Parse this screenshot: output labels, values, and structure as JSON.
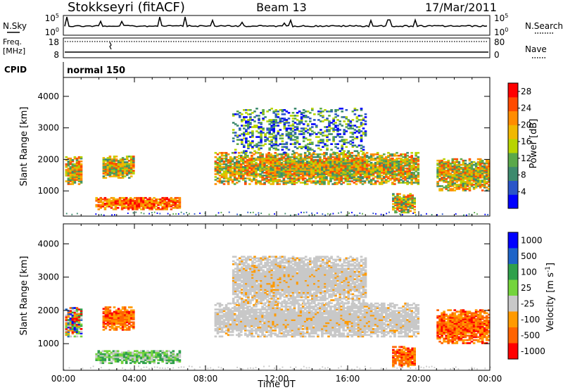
{
  "header": {
    "site": "Stokkseyri (fitACF)",
    "beam": "Beam 13",
    "date": "17/Mar/2011"
  },
  "strips": {
    "nsky_label": "N.Sky",
    "nsearch_label": "N.Search",
    "nsky_ticks": [
      "10^5",
      "10^0"
    ],
    "nsearch_ticks": [
      "10^5",
      "10^0"
    ],
    "freq_label_1": "Freq.",
    "freq_label_2": "[MHz]",
    "freq_ticks": [
      "18",
      "8"
    ],
    "nave_label": "Nave",
    "nave_ticks": [
      "80",
      "0"
    ],
    "cpid_label": "CPID",
    "cpid_value": "normal 150"
  },
  "chart_data": [
    {
      "type": "heatmap",
      "name": "power",
      "ylabel": "Slant Range [km]",
      "xlabel": "",
      "xlim": [
        0,
        24
      ],
      "ylim": [
        200,
        4600
      ],
      "x_ticks": [
        "00:00",
        "04:00",
        "08:00",
        "12:00",
        "16:00",
        "20:00",
        "00:00"
      ],
      "y_ticks": [
        1000,
        2000,
        3000,
        4000
      ],
      "colorbar": {
        "label": "Power [dB]",
        "ticks": [
          4,
          8,
          12,
          16,
          20,
          24,
          28
        ],
        "range": [
          0,
          30
        ],
        "colors": [
          "#0000ff",
          "#2a55c8",
          "#3d8a6e",
          "#5aa84a",
          "#b8d400",
          "#f0b800",
          "#ff8c00",
          "#ff4a00",
          "#ff0000"
        ]
      },
      "features": [
        {
          "t0": 0.1,
          "t1": 1.0,
          "r0": 1200,
          "r1": 2100,
          "level": "high"
        },
        {
          "t0": 2.2,
          "t1": 4.0,
          "r0": 1400,
          "r1": 2100,
          "level": "high"
        },
        {
          "t0": 1.8,
          "t1": 6.5,
          "r0": 400,
          "r1": 800,
          "level": "strong"
        },
        {
          "t0": 8.5,
          "t1": 20.0,
          "r0": 1200,
          "r1": 2200,
          "level": "high"
        },
        {
          "t0": 9.5,
          "t1": 17.0,
          "r0": 2200,
          "r1": 3600,
          "level": "low"
        },
        {
          "t0": 18.5,
          "t1": 19.8,
          "r0": 300,
          "r1": 900,
          "level": "high"
        },
        {
          "t0": 21.0,
          "t1": 24.0,
          "r0": 1000,
          "r1": 2000,
          "level": "high"
        }
      ]
    },
    {
      "type": "heatmap",
      "name": "velocity",
      "ylabel": "Slant Range [km]",
      "xlabel": "Time UT",
      "xlim": [
        0,
        24
      ],
      "ylim": [
        200,
        4600
      ],
      "x_ticks": [
        "00:00",
        "04:00",
        "08:00",
        "12:00",
        "16:00",
        "20:00",
        "00:00"
      ],
      "y_ticks": [
        1000,
        2000,
        3000,
        4000
      ],
      "colorbar": {
        "label": "Velocity [m s^-1]",
        "ticks": [
          "1000",
          "500",
          "100",
          "25",
          "-25",
          "-100",
          "-500",
          "-1000"
        ],
        "colors": [
          "#0000ff",
          "#1e64c8",
          "#2fa04b",
          "#74d43c",
          "#c8c8c8",
          "#ff9a00",
          "#ff6400",
          "#ff0000"
        ]
      },
      "features": [
        {
          "t0": 0.1,
          "t1": 1.0,
          "r0": 1200,
          "r1": 2100,
          "level": "mixed"
        },
        {
          "t0": 2.2,
          "t1": 4.0,
          "r0": 1400,
          "r1": 2100,
          "level": "orange"
        },
        {
          "t0": 1.8,
          "t1": 6.5,
          "r0": 400,
          "r1": 800,
          "level": "green"
        },
        {
          "t0": 8.5,
          "t1": 20.0,
          "r0": 1200,
          "r1": 2200,
          "level": "grey"
        },
        {
          "t0": 9.5,
          "t1": 17.0,
          "r0": 2200,
          "r1": 3600,
          "level": "grey"
        },
        {
          "t0": 18.5,
          "t1": 19.8,
          "r0": 300,
          "r1": 900,
          "level": "orange"
        },
        {
          "t0": 21.0,
          "t1": 24.0,
          "r0": 1000,
          "r1": 2000,
          "level": "orange"
        }
      ]
    }
  ]
}
